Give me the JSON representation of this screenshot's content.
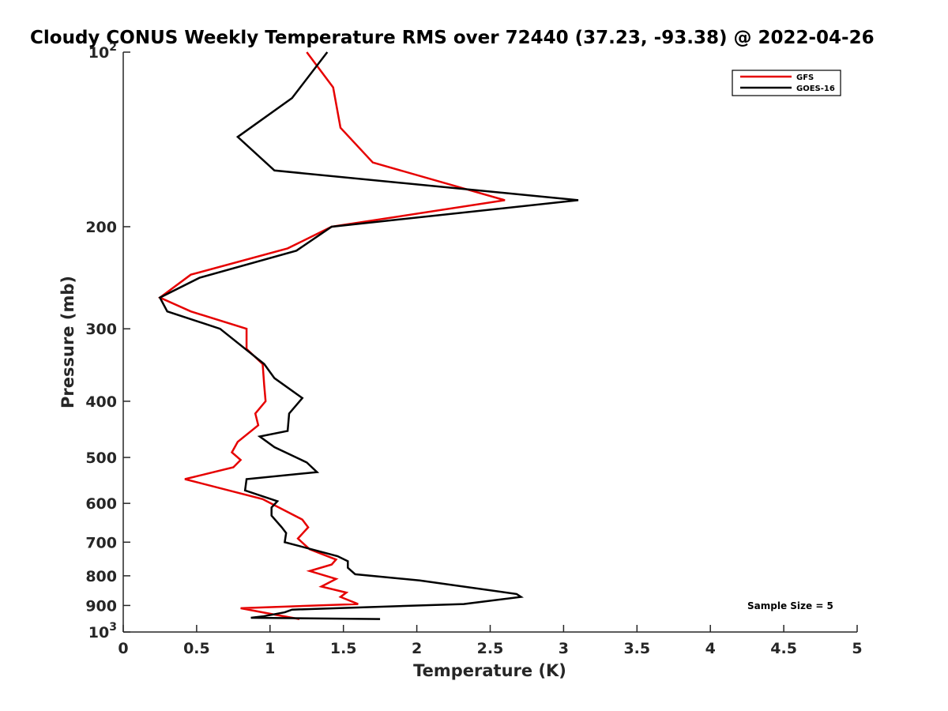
{
  "chart_data": {
    "type": "line",
    "title": "Cloudy CONUS Weekly Temperature RMS over 72440 (37.23, -93.38) @ 2022-04-26",
    "xlabel": "Temperature (K)",
    "ylabel": "Pressure (mb)",
    "xlim": [
      0,
      5
    ],
    "ylim": [
      100,
      1000
    ],
    "y_scale": "log",
    "y_reversed": true,
    "x_ticks": [
      "0",
      "0.5",
      "1",
      "1.5",
      "2",
      "2.5",
      "3",
      "3.5",
      "4",
      "4.5",
      "5"
    ],
    "y_ticks": [
      {
        "value": 100,
        "base": "10",
        "exp": "2",
        "label": ""
      },
      {
        "value": 200,
        "base": "",
        "exp": "",
        "label": "200"
      },
      {
        "value": 300,
        "base": "",
        "exp": "",
        "label": "300"
      },
      {
        "value": 400,
        "base": "",
        "exp": "",
        "label": "400"
      },
      {
        "value": 500,
        "base": "",
        "exp": "",
        "label": "500"
      },
      {
        "value": 600,
        "base": "",
        "exp": "",
        "label": "600"
      },
      {
        "value": 700,
        "base": "",
        "exp": "",
        "label": "700"
      },
      {
        "value": 800,
        "base": "",
        "exp": "",
        "label": "800"
      },
      {
        "value": 900,
        "base": "",
        "exp": "",
        "label": "900"
      },
      {
        "value": 1000,
        "base": "10",
        "exp": "3",
        "label": ""
      }
    ],
    "legend_position": "top-right",
    "grid": false,
    "annotation": "Sample Size = 5",
    "series": [
      {
        "name": "GFS",
        "color": "#e60000",
        "points": [
          [
            1.25,
            100
          ],
          [
            1.43,
            115
          ],
          [
            1.48,
            135
          ],
          [
            1.7,
            155
          ],
          [
            2.6,
            180
          ],
          [
            1.42,
            200
          ],
          [
            1.12,
            218
          ],
          [
            0.46,
            242
          ],
          [
            0.25,
            265
          ],
          [
            0.46,
            280
          ],
          [
            0.84,
            300
          ],
          [
            0.84,
            325
          ],
          [
            0.95,
            345
          ],
          [
            0.96,
            375
          ],
          [
            0.97,
            400
          ],
          [
            0.9,
            420
          ],
          [
            0.92,
            440
          ],
          [
            0.78,
            470
          ],
          [
            0.74,
            490
          ],
          [
            0.8,
            505
          ],
          [
            0.75,
            520
          ],
          [
            0.42,
            545
          ],
          [
            0.95,
            590
          ],
          [
            1.22,
            640
          ],
          [
            1.26,
            660
          ],
          [
            1.19,
            690
          ],
          [
            1.27,
            720
          ],
          [
            1.45,
            750
          ],
          [
            1.42,
            765
          ],
          [
            1.27,
            785
          ],
          [
            1.45,
            810
          ],
          [
            1.35,
            835
          ],
          [
            1.52,
            855
          ],
          [
            1.48,
            870
          ],
          [
            1.6,
            895
          ],
          [
            0.8,
            910
          ],
          [
            1.05,
            935
          ],
          [
            1.2,
            950
          ]
        ]
      },
      {
        "name": "GOES-16",
        "color": "#000000",
        "points": [
          [
            1.39,
            100
          ],
          [
            1.15,
            120
          ],
          [
            0.78,
            140
          ],
          [
            1.03,
            160
          ],
          [
            3.1,
            180
          ],
          [
            1.42,
            200
          ],
          [
            1.18,
            220
          ],
          [
            0.52,
            245
          ],
          [
            0.25,
            265
          ],
          [
            0.3,
            280
          ],
          [
            0.66,
            300
          ],
          [
            0.96,
            345
          ],
          [
            1.03,
            365
          ],
          [
            1.22,
            395
          ],
          [
            1.13,
            420
          ],
          [
            1.12,
            450
          ],
          [
            0.93,
            460
          ],
          [
            1.03,
            480
          ],
          [
            1.25,
            510
          ],
          [
            1.32,
            530
          ],
          [
            0.84,
            545
          ],
          [
            0.83,
            570
          ],
          [
            1.05,
            595
          ],
          [
            1.01,
            610
          ],
          [
            1.01,
            630
          ],
          [
            1.08,
            660
          ],
          [
            1.11,
            675
          ],
          [
            1.1,
            700
          ],
          [
            1.46,
            740
          ],
          [
            1.53,
            755
          ],
          [
            1.53,
            775
          ],
          [
            1.58,
            795
          ],
          [
            2.02,
            815
          ],
          [
            2.68,
            860
          ],
          [
            2.71,
            870
          ],
          [
            2.32,
            895
          ],
          [
            1.15,
            915
          ],
          [
            1.1,
            925
          ],
          [
            0.95,
            940
          ],
          [
            0.87,
            945
          ],
          [
            1.75,
            950
          ]
        ]
      }
    ]
  }
}
